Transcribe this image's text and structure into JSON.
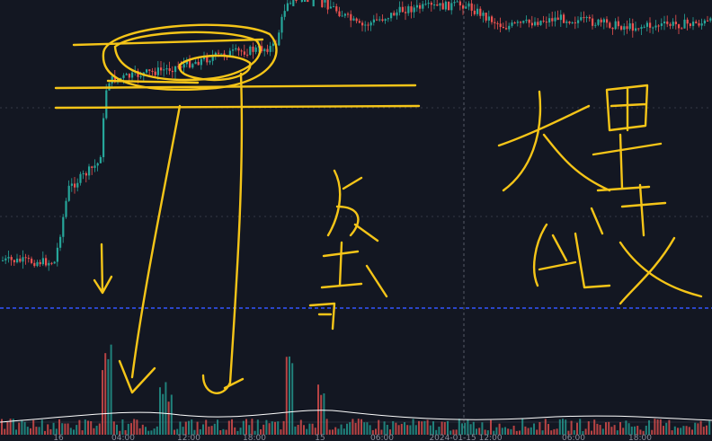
{
  "colors": {
    "background": "#131722",
    "candle_up": "#26a69a",
    "candle_down": "#ef5350",
    "grid": "#363a45",
    "crosshair": "#555a66",
    "hline_blue": "#3355ff",
    "volume_ma": "#ffffff",
    "annotation": "#f5c518"
  },
  "chart_data": {
    "type": "candlestick",
    "title": "",
    "xlabel": "",
    "ylabel": "",
    "grid": true,
    "x_ticks": [
      "16",
      "04:00",
      "12:00",
      "18:00",
      "15",
      "06:00",
      "2024-01-15 12:00",
      "06:00",
      "18:00"
    ],
    "annotation_marks": [
      "arrow-down",
      "arrow-down",
      "arrow-down",
      "circle",
      "horizontal-lines"
    ],
    "annotation_text": [
      {
        "text": "大量",
        "role": "handwritten"
      },
      {
        "text": "结支",
        "role": "handwritten"
      },
      {
        "text": "缺口",
        "role": "handwritten"
      }
    ]
  }
}
